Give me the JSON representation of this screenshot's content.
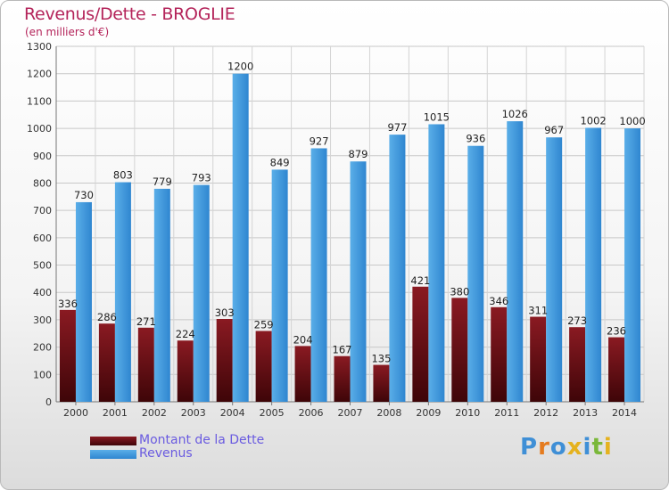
{
  "title": "Revenus/Dette - BROGLIE",
  "subtitle": "(en milliers d'€)",
  "logo_text": "Proxiti",
  "colors": {
    "dette": "#6b0d14",
    "revenus": "#3d95dd",
    "title": "#b4245a",
    "legend_text": "#6a5be0"
  },
  "chart_data": {
    "type": "bar",
    "categories": [
      "2000",
      "2001",
      "2002",
      "2003",
      "2004",
      "2005",
      "2006",
      "2007",
      "2008",
      "2009",
      "2010",
      "2011",
      "2012",
      "2013",
      "2014"
    ],
    "series": [
      {
        "name": "Montant de la Dette",
        "values": [
          336,
          286,
          271,
          224,
          303,
          259,
          204,
          167,
          135,
          421,
          380,
          346,
          311,
          273,
          236
        ]
      },
      {
        "name": "Revenus",
        "values": [
          730,
          803,
          779,
          793,
          1200,
          849,
          927,
          879,
          977,
          1015,
          936,
          1026,
          967,
          1002,
          1000
        ]
      }
    ],
    "ylim": [
      0,
      1300
    ],
    "yticks": [
      0,
      100,
      200,
      300,
      400,
      500,
      600,
      700,
      800,
      900,
      1000,
      1100,
      1200,
      1300
    ],
    "grid": true,
    "legend_position": "bottom-left"
  }
}
